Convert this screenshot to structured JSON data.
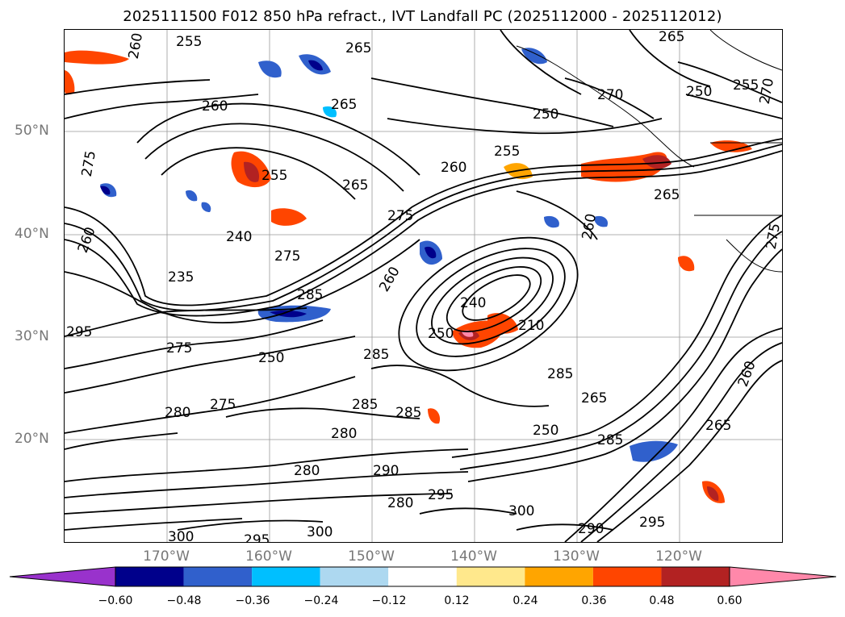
{
  "title": "2025111500 F012 850 hPa refract., IVT Landfall PC (2025112000 - 2025112012)",
  "map": {
    "lat_labels": [
      "50°N",
      "40°N",
      "30°N",
      "20°N"
    ],
    "lon_labels": [
      "170°W",
      "160°W",
      "150°W",
      "140°W",
      "130°W",
      "120°W"
    ],
    "contour_labels": [
      "260",
      "255",
      "265",
      "265",
      "260",
      "255",
      "265",
      "270",
      "265",
      "250",
      "255",
      "260",
      "275",
      "250",
      "255",
      "265",
      "275",
      "240",
      "235",
      "275",
      "285",
      "260",
      "240",
      "250",
      "210",
      "285",
      "295",
      "275",
      "280",
      "285",
      "285",
      "280",
      "280",
      "275",
      "285",
      "265",
      "250",
      "285",
      "265",
      "290",
      "295",
      "280",
      "300",
      "295",
      "300",
      "300",
      "290",
      "295",
      "260",
      "270",
      "260",
      "250",
      "260",
      "275"
    ]
  },
  "colorbar": {
    "colors": [
      "#9932cc",
      "#00008b",
      "#3060cc",
      "#00bfff",
      "#add8f0",
      "#ffffff",
      "#ffe88c",
      "#ffa500",
      "#ff4500",
      "#b22222",
      "#ff88aa"
    ],
    "tick_labels": [
      "−0.60",
      "−0.48",
      "−0.36",
      "−0.24",
      "−0.12",
      "0.12",
      "0.24",
      "0.36",
      "0.48",
      "0.60"
    ]
  }
}
